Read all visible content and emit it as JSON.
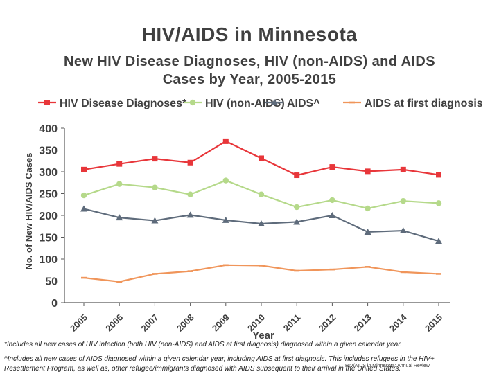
{
  "header": {
    "title": "HIV/AIDS in Minnesota",
    "subtitle_line1": "New HIV Disease Diagnoses, HIV (non-AIDS) and AIDS",
    "subtitle_line2": "Cases by Year, 2005-2015"
  },
  "chart_data": {
    "type": "line",
    "title": "New HIV Disease Diagnoses, HIV (non-AIDS) and AIDS Cases by Year, 2005-2015",
    "xlabel": "Year",
    "ylabel": "No. of New HIV/AIDS Cases",
    "ylim": [
      0,
      400
    ],
    "yticks": [
      0,
      50,
      100,
      150,
      200,
      250,
      300,
      350,
      400
    ],
    "categories": [
      "2005",
      "2006",
      "2007",
      "2008",
      "2009",
      "2010",
      "2011",
      "2012",
      "2013",
      "2014",
      "2015"
    ],
    "legend_position": "top",
    "grid": false,
    "series": [
      {
        "name": "HIV Disease Diagnoses*",
        "color": "#e8363a",
        "marker": "square",
        "values": [
          305,
          318,
          330,
          321,
          370,
          331,
          292,
          311,
          301,
          305,
          293
        ]
      },
      {
        "name": "HIV (non-AIDS)",
        "color": "#b5d98a",
        "marker": "circle",
        "values": [
          246,
          272,
          264,
          248,
          280,
          248,
          219,
          235,
          216,
          233,
          228
        ]
      },
      {
        "name": "AIDS^",
        "color": "#5e6b7b",
        "marker": "triangle",
        "values": [
          215,
          195,
          188,
          201,
          189,
          181,
          185,
          200,
          162,
          165,
          141
        ]
      },
      {
        "name": "AIDS at first diagnosis",
        "color": "#f0955a",
        "marker": "dash",
        "values": [
          57,
          48,
          66,
          72,
          86,
          85,
          73,
          76,
          82,
          70,
          66
        ]
      }
    ]
  },
  "footnotes": {
    "note1": "*Includes all new cases of HIV infection (both HIV (non-AIDS) and AIDS at first diagnosis) diagnosed within a given calendar year.",
    "note2": "^Includes all new cases of AIDS diagnosed within a given calendar year, including AIDS at first diagnosis. This includes refugees in the HIV+ Resettlement Program, as well as, other refugee/immigrants diagnosed with AIDS subsequent to their arrival in the United States.",
    "source": "HIV/AIDS in Minnesota: Annual Review"
  }
}
